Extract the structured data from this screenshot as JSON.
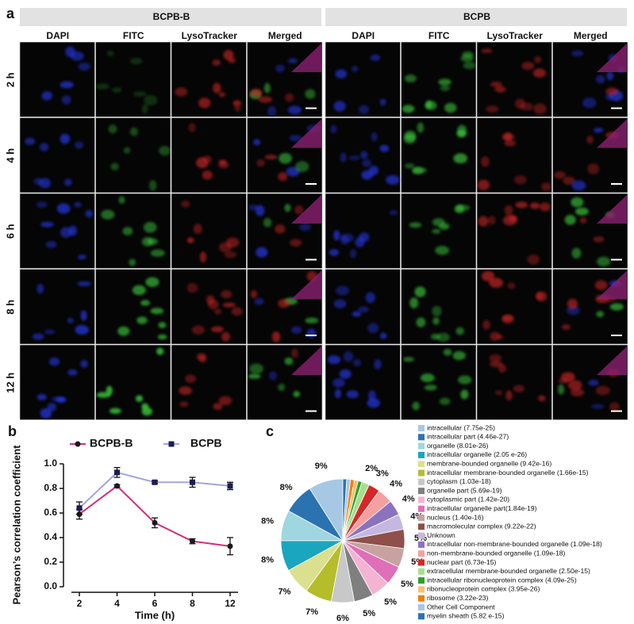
{
  "panel_a": {
    "label": "a",
    "groups": [
      {
        "title": "BCPB-B",
        "columns": [
          "DAPI",
          "FITC",
          "LysoTracker",
          "Merged"
        ]
      },
      {
        "title": "BCPB",
        "columns": [
          "DAPI",
          "FITC",
          "LysoTracker",
          "Merged"
        ]
      }
    ],
    "rows": [
      "2 h",
      "4 h",
      "6 h",
      "8 h",
      "12 h"
    ]
  },
  "chart_data": [
    {
      "type": "line",
      "panel_label": "b",
      "xlabel": "Time (h)",
      "ylabel": "Pearson’s correlation coefficient",
      "categories": [
        "2",
        "4",
        "6",
        "8",
        "12"
      ],
      "ylim": [
        0,
        1
      ],
      "yticks": [
        {
          "value": 0,
          "label": "0.0"
        },
        0.2,
        0.4,
        0.6,
        0.8,
        {
          "value": 1,
          "label": "1.0"
        }
      ],
      "legend": "top",
      "series": [
        {
          "name": "BCPB-B",
          "color": "#d0307a",
          "marker_color": "#1a1a1a",
          "marker": "circle",
          "values": [
            0.59,
            0.82,
            0.52,
            0.37,
            0.33
          ],
          "errors": [
            0.04,
            0.01,
            0.04,
            0.02,
            0.07
          ]
        },
        {
          "name": "BCPB",
          "color": "#a4a4dc",
          "marker_color": "#1c1c50",
          "marker": "square",
          "values": [
            0.64,
            0.93,
            0.85,
            0.85,
            0.82
          ],
          "errors": [
            0.05,
            0.04,
            0.01,
            0.04,
            0.03
          ]
        }
      ]
    },
    {
      "type": "pie",
      "panel_label": "c",
      "start": "top",
      "direction": "counterclockwise",
      "categories": [
        "intracellular (7.75e-25)",
        "intracellular part (4.46e-27)",
        "organelle (8.01e-26)",
        "intracellular organelle (2.05 e-26)",
        "membrane-bounded organelle (9.42e-16)",
        "intracellular membrane-bounded organelle (1.66e-15)",
        "cytoplasm (1.03e-18)",
        "organelle part (5.69e-19)",
        "cytoplasmic part (1.42e-20)",
        "intracellular organelle part(1.84e-19)",
        "nucleus (1.40e-16)",
        "macromolecular complex (9.22e-22)",
        "Unknown",
        "intracellular non-membrane-bounded organelle (1.09e-18)",
        "non-membrane-bounded organelle (1.09e-18)",
        "nuclear part (6.73e-15)",
        "extracellular membrane-bounded organelle (2.50e-15)",
        "intracellular ribonucleoprotein complex (4.09e-25)",
        "ribonucleoprotein complex (3.95e-26)",
        "ribosome (3.22e-23)",
        "Other Cell Component",
        "myelin sheath (5.82 e-15)"
      ],
      "values": [
        9,
        8,
        8,
        8,
        7,
        7,
        6,
        5,
        5,
        5,
        5,
        5,
        4,
        4,
        4,
        3,
        2,
        1,
        1,
        1,
        1,
        1
      ],
      "value_labels": [
        "9%",
        "8%",
        "8%",
        "8%",
        "7%",
        "7%",
        "6%",
        "5%",
        "5%",
        "5%",
        "5%",
        "5%",
        "4%",
        "4%",
        "4%",
        "3%",
        "2%",
        null,
        null,
        null,
        null,
        null
      ],
      "colors": [
        "#a6c8e4",
        "#2b73b0",
        "#9fd6e0",
        "#1aa6be",
        "#dbe08f",
        "#b5bd2a",
        "#c8c8c8",
        "#7f7f7f",
        "#f4b3d3",
        "#df6fb8",
        "#c8a2a0",
        "#8f4f4a",
        "#c5b8e0",
        "#8b72bf",
        "#f5a0a0",
        "#d62728",
        "#a7df8c",
        "#2ca02c",
        "#fdbf6f",
        "#f07f0e",
        "#a6c8e4",
        "#2b73b0"
      ]
    }
  ]
}
